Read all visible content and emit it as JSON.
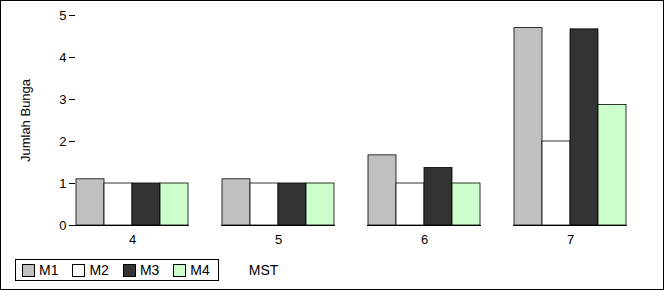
{
  "chart_data": {
    "type": "bar",
    "y_label": "Jumlah Bunga",
    "x_label": "MST",
    "categories": [
      "4",
      "5",
      "6",
      "7"
    ],
    "series": [
      {
        "name": "M1",
        "color": "#c0c0c0",
        "values": [
          1.1,
          1.1,
          1.67,
          4.7
        ]
      },
      {
        "name": "M2",
        "color": "#ffffff",
        "values": [
          1.0,
          1.0,
          1.0,
          2.0
        ]
      },
      {
        "name": "M3",
        "color": "#333333",
        "values": [
          1.0,
          1.0,
          1.37,
          4.67
        ]
      },
      {
        "name": "M4",
        "color": "#ccffcc",
        "values": [
          1.0,
          1.0,
          1.0,
          2.87
        ]
      }
    ],
    "ylim": [
      0,
      5
    ],
    "yticks": [
      0,
      1,
      2,
      3,
      4,
      5
    ],
    "grid": false,
    "legend": "bottom"
  }
}
